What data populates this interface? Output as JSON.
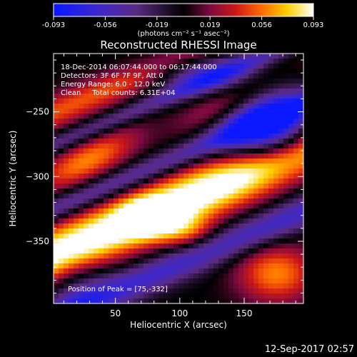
{
  "chart_data": {
    "type": "heatmap",
    "title": "Reconstructed RHESSI Image",
    "xlabel": "Heliocentric X (arcsec)",
    "ylabel": "Heliocentric Y (arcsec)",
    "xlim": [
      2,
      196
    ],
    "ylim": [
      -398,
      -205
    ],
    "x_ticks": [
      50,
      100,
      150
    ],
    "y_ticks": [
      -250,
      -300,
      -350
    ],
    "colorbar": {
      "min": -0.093,
      "max": 0.093,
      "ticks": [
        "-0.093",
        "-0.056",
        "-0.019",
        "0.019",
        "0.056",
        "0.093"
      ],
      "units": "(photons cm⁻² s⁻¹ asec⁻²)",
      "colors": [
        "#0a18ff",
        "#4028c8",
        "#5a2a80",
        "#000000",
        "#7a0a40",
        "#cc1818",
        "#ff6a00",
        "#ffd000",
        "#ffffff"
      ]
    },
    "annotations": [
      "18-Dec-2014 06:07:44.000 to 06:17:44.000",
      "Detectors: 3F 6F 7F 9F, Att 0",
      "Energy Range: 6.0 - 12.0 keV",
      "Clean     Total counts: 6.31E+04"
    ],
    "peak": {
      "label": "Position of Peak = [75,-332]",
      "x": 75,
      "y": -332
    },
    "features": [
      {
        "kind": "negative-band",
        "description": "upper-right blue trough",
        "value": -0.08
      },
      {
        "kind": "positive-band",
        "description": "main bright ridge",
        "value": 0.093
      }
    ]
  },
  "footer": {
    "timestamp": "12-Sep-2017 02:57"
  }
}
